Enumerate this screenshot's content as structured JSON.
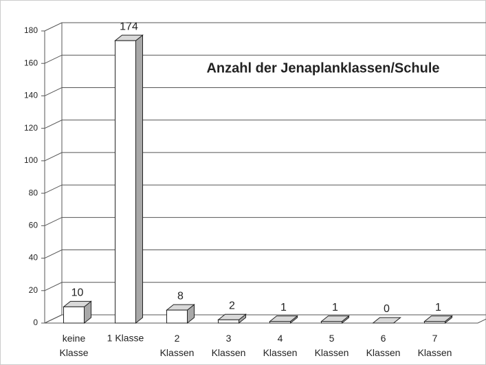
{
  "chart_data": {
    "type": "bar3d",
    "title": "Anzahl der Jenaplanklassen/Schule",
    "categories": [
      "keine Klasse",
      "1 Klasse",
      "2 Klassen",
      "3 Klassen",
      "4 Klassen",
      "5 Klassen",
      "6 Klassen",
      "7 Klassen"
    ],
    "values": [
      10,
      174,
      8,
      2,
      1,
      1,
      0,
      1
    ],
    "color": "#ffffff",
    "side_color": "#a8a8a8",
    "top_color": "#d9d9d9",
    "ylim": [
      0,
      180
    ],
    "yticks": [
      0,
      20,
      40,
      60,
      80,
      100,
      120,
      140,
      160,
      180
    ],
    "grid": true
  }
}
